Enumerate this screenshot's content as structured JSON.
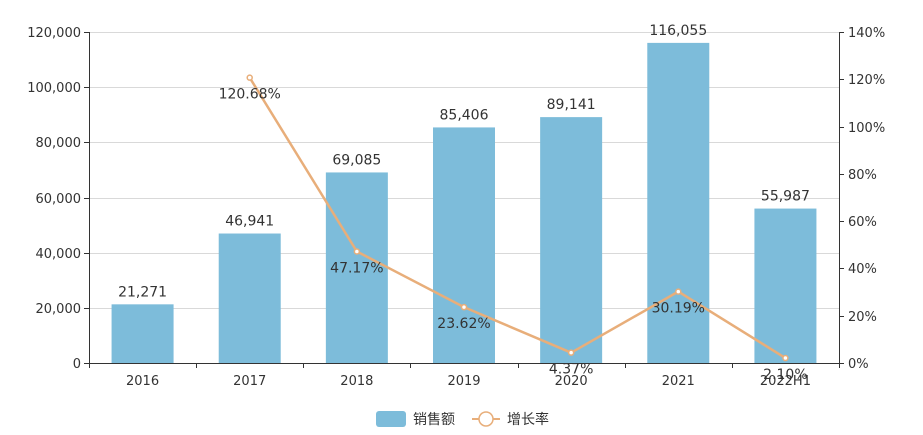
{
  "chart_data": {
    "type": "bar",
    "categories": [
      "2016",
      "2017",
      "2018",
      "2019",
      "2020",
      "2021",
      "2022H1"
    ],
    "series": [
      {
        "name": "销售额",
        "type": "bar",
        "axis": "left",
        "color": "#7DBCDA",
        "values": [
          21271,
          46941,
          69085,
          85406,
          89141,
          116055,
          55987
        ],
        "labels": [
          "21,271",
          "46,941",
          "69,085",
          "85,406",
          "89,141",
          "116,055",
          "55,987"
        ]
      },
      {
        "name": "增长率",
        "type": "line",
        "axis": "right",
        "color": "#E8AE7A",
        "values": [
          null,
          120.68,
          47.17,
          23.62,
          4.37,
          30.19,
          2.1
        ],
        "labels": [
          "",
          "120.68%",
          "47.17%",
          "23.62%",
          "4.37%",
          "30.19%",
          "2.10%"
        ]
      }
    ],
    "y_left": {
      "min": 0,
      "max": 120000,
      "ticks": [
        0,
        20000,
        40000,
        60000,
        80000,
        100000,
        120000
      ],
      "tick_labels": [
        "0",
        "20,000",
        "40,000",
        "60,000",
        "80,000",
        "100,000",
        "120,000"
      ]
    },
    "y_right": {
      "min": 0,
      "max": 140,
      "ticks": [
        0,
        20,
        40,
        60,
        80,
        100,
        120,
        140
      ],
      "tick_labels": [
        "0%",
        "20%",
        "40%",
        "60%",
        "80%",
        "100%",
        "120%",
        "140%"
      ]
    },
    "grid": true,
    "legend_position": "bottom-center",
    "title": "",
    "xlabel": "",
    "ylabel": ""
  }
}
